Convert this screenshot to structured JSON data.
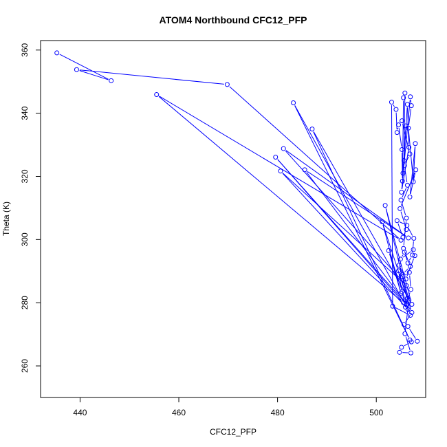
{
  "chart_data": {
    "type": "line",
    "title": "ATOM4 Northbound CFC12_PFP",
    "xlabel": "CFC12_PFP",
    "ylabel": "Theta (K)",
    "xlim": [
      432,
      510
    ],
    "ylim": [
      250,
      363
    ],
    "xticks": [
      440,
      460,
      480,
      500
    ],
    "yticks": [
      260,
      280,
      300,
      320,
      340,
      360
    ],
    "grid": false,
    "legend": "none",
    "series_color": "#0000ff",
    "marker": "open-circle",
    "series": [
      {
        "values": [
          [
            435.3,
            359.1
          ],
          [
            446.3,
            350.3
          ],
          [
            439.3,
            353.8
          ],
          [
            469.8,
            349.1
          ],
          [
            505.0,
            299.8
          ],
          [
            455.5,
            345.9
          ],
          [
            505.5,
            280.0
          ],
          [
            479.6,
            326.1
          ],
          [
            506.2,
            279.4
          ],
          [
            485.5,
            322.1
          ],
          [
            506.5,
            300.5
          ],
          [
            481.2,
            328.8
          ],
          [
            506.1,
            285.4
          ],
          [
            480.6,
            321.7
          ],
          [
            506.4,
            277.9
          ],
          [
            483.2,
            343.3
          ],
          [
            506.8,
            268.2
          ],
          [
            487.0,
            335.0
          ],
          [
            507.2,
            279.5
          ],
          [
            501.8,
            310.8
          ],
          [
            506.5,
            280.2
          ],
          [
            501.2,
            305.6
          ],
          [
            505.0,
            283.0
          ],
          [
            502.5,
            296.5
          ],
          [
            506.9,
            276.0
          ],
          [
            503.3,
            278.9
          ],
          [
            503.1,
            343.5
          ],
          [
            504.0,
            341.2
          ],
          [
            504.2,
            333.9
          ],
          [
            504.5,
            336.3
          ],
          [
            505.2,
            328.5
          ],
          [
            505.3,
            318.5
          ],
          [
            505.5,
            344.9
          ],
          [
            505.8,
            346.4
          ],
          [
            505.6,
            325.0
          ],
          [
            506.0,
            336.0
          ],
          [
            505.4,
            321.0
          ],
          [
            506.3,
            342.8
          ],
          [
            506.6,
            329.2
          ],
          [
            505.1,
            315.0
          ],
          [
            506.9,
            345.2
          ],
          [
            507.1,
            342.4
          ],
          [
            506.5,
            335.3
          ],
          [
            507.5,
            318.3
          ],
          [
            507.9,
            330.4
          ],
          [
            506.8,
            313.5
          ],
          [
            508.0,
            322.1
          ],
          [
            504.8,
            309.8
          ],
          [
            506.1,
            303.2
          ],
          [
            505.4,
            300.7
          ],
          [
            504.2,
            306.0
          ],
          [
            506.2,
            304.5
          ],
          [
            507.6,
            300.4
          ],
          [
            507.3,
            295.1
          ],
          [
            506.4,
            292.6
          ],
          [
            505.7,
            296.0
          ],
          [
            504.9,
            293.8
          ],
          [
            507.5,
            296.8
          ],
          [
            507.8,
            294.9
          ],
          [
            506.0,
            287.5
          ],
          [
            504.6,
            291.9
          ],
          [
            505.3,
            288.2
          ],
          [
            506.7,
            289.6
          ],
          [
            507.0,
            284.2
          ],
          [
            505.9,
            278.6
          ],
          [
            505.2,
            283.5
          ],
          [
            504.5,
            290.1
          ],
          [
            506.3,
            281.4
          ],
          [
            507.2,
            276.9
          ],
          [
            505.6,
            273.1
          ],
          [
            506.4,
            272.5
          ],
          [
            508.3,
            267.8
          ],
          [
            507.1,
            267.6
          ],
          [
            505.1,
            265.9
          ],
          [
            504.7,
            264.3
          ],
          [
            507.0,
            264.1
          ],
          [
            505.8,
            270.2
          ],
          [
            506.6,
            280.8
          ],
          [
            505.3,
            289.0
          ],
          [
            506.9,
            291.5
          ],
          [
            505.5,
            297.2
          ],
          [
            506.1,
            306.8
          ],
          [
            505.0,
            312.5
          ],
          [
            506.3,
            317.2
          ],
          [
            505.7,
            323.4
          ],
          [
            506.8,
            327.1
          ],
          [
            505.2,
            337.6
          ]
        ]
      }
    ]
  }
}
